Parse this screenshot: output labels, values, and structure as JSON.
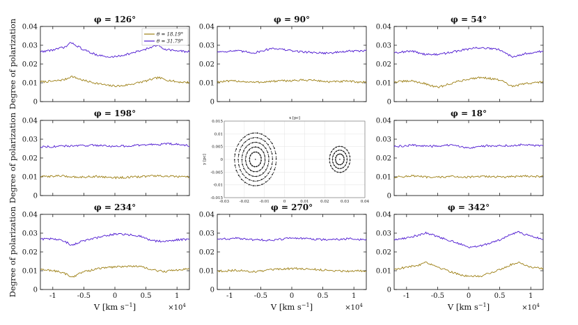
{
  "chart_data": {
    "type": "line",
    "figure": "3x3 grid of spectropolarimetry panels with central disk-velocity inset",
    "xlabel": "V [km s⁻¹]",
    "xlabel_main": "V [km s",
    "xlabel_unit_exp": "−1",
    "xlabel_close": "]",
    "x_multiplier": "×10",
    "x_multiplier_exp": "4",
    "ylabel": "Degree of polarization",
    "xlim": [
      -1.2,
      1.2
    ],
    "ylim": [
      0,
      0.04
    ],
    "xticks": [
      "-1",
      "-0.5",
      "0",
      "0.5",
      "1"
    ],
    "yticks": [
      "0",
      "0.01",
      "0.02",
      "0.03",
      "0.04"
    ],
    "colors": {
      "theta1": "#9c7e12",
      "theta2": "#4b15d0"
    },
    "legend": [
      "θ = 18.19°",
      "θ = 31.79°"
    ],
    "panels": [
      {
        "title": "φ = 126°",
        "series": [
          {
            "name": "θ = 18.19°",
            "x": [
              -1.2,
              -1.0,
              -0.8,
              -0.7,
              -0.5,
              -0.3,
              -0.1,
              0.1,
              0.3,
              0.5,
              0.7,
              0.8,
              1.0,
              1.2
            ],
            "y": [
              0.0105,
              0.0108,
              0.0118,
              0.0135,
              0.0112,
              0.0098,
              0.0085,
              0.0083,
              0.0095,
              0.011,
              0.0128,
              0.0118,
              0.0105,
              0.0102
            ]
          },
          {
            "name": "θ = 31.79°",
            "x": [
              -1.2,
              -1.0,
              -0.8,
              -0.7,
              -0.5,
              -0.3,
              -0.1,
              0.1,
              0.3,
              0.5,
              0.7,
              0.8,
              1.0,
              1.2
            ],
            "y": [
              0.0265,
              0.0275,
              0.029,
              0.0315,
              0.0275,
              0.025,
              0.0235,
              0.0245,
              0.026,
              0.028,
              0.03,
              0.028,
              0.027,
              0.0265
            ]
          }
        ]
      },
      {
        "title": "φ = 90°",
        "series": [
          {
            "name": "θ = 18.19°",
            "x": [
              -1.2,
              -0.9,
              -0.6,
              -0.3,
              0,
              0.3,
              0.6,
              0.9,
              1.2
            ],
            "y": [
              0.0105,
              0.011,
              0.0102,
              0.0108,
              0.0112,
              0.0115,
              0.0105,
              0.0108,
              0.0102
            ]
          },
          {
            "name": "θ = 31.79°",
            "x": [
              -1.2,
              -0.9,
              -0.6,
              -0.3,
              0,
              0.3,
              0.6,
              0.9,
              1.2
            ],
            "y": [
              0.0265,
              0.027,
              0.026,
              0.0285,
              0.027,
              0.0262,
              0.0258,
              0.0268,
              0.027
            ]
          }
        ]
      },
      {
        "title": "φ = 54°",
        "series": [
          {
            "name": "θ = 18.19°",
            "x": [
              -1.2,
              -0.9,
              -0.7,
              -0.5,
              -0.2,
              0,
              0.2,
              0.5,
              0.7,
              0.9,
              1.2
            ],
            "y": [
              0.0105,
              0.011,
              0.0095,
              0.0075,
              0.0105,
              0.012,
              0.013,
              0.0115,
              0.008,
              0.0095,
              0.0105
            ]
          },
          {
            "name": "θ = 31.79°",
            "x": [
              -1.2,
              -0.9,
              -0.7,
              -0.5,
              -0.2,
              0,
              0.2,
              0.5,
              0.7,
              0.9,
              1.2
            ],
            "y": [
              0.0262,
              0.0268,
              0.0252,
              0.025,
              0.0268,
              0.028,
              0.0288,
              0.0275,
              0.024,
              0.0255,
              0.0268
            ]
          }
        ]
      },
      {
        "title": "φ = 198°",
        "series": [
          {
            "name": "θ = 18.19°",
            "x": [
              -1.2,
              -0.9,
              -0.6,
              -0.3,
              0,
              0.3,
              0.6,
              0.9,
              1.2
            ],
            "y": [
              0.01,
              0.0105,
              0.0098,
              0.0102,
              0.0095,
              0.0098,
              0.0105,
              0.0102,
              0.0098
            ]
          },
          {
            "name": "θ = 31.79°",
            "x": [
              -1.2,
              -0.9,
              -0.6,
              -0.3,
              0,
              0.3,
              0.6,
              0.9,
              1.2
            ],
            "y": [
              0.026,
              0.0262,
              0.0265,
              0.0268,
              0.0262,
              0.0265,
              0.0272,
              0.0275,
              0.0265
            ]
          }
        ]
      },
      {
        "title": "φ = 18°",
        "series": [
          {
            "name": "θ = 18.19°",
            "x": [
              -1.2,
              -0.9,
              -0.6,
              -0.3,
              0,
              0.3,
              0.6,
              0.9,
              1.2
            ],
            "y": [
              0.0098,
              0.0105,
              0.0095,
              0.0102,
              0.0098,
              0.0102,
              0.0098,
              0.0105,
              0.01
            ]
          },
          {
            "name": "θ = 31.79°",
            "x": [
              -1.2,
              -0.9,
              -0.6,
              -0.3,
              0,
              0.3,
              0.6,
              0.9,
              1.2
            ],
            "y": [
              0.026,
              0.0268,
              0.0262,
              0.0268,
              0.0255,
              0.0265,
              0.0265,
              0.0272,
              0.0262
            ]
          }
        ]
      },
      {
        "title": "φ = 234°",
        "series": [
          {
            "name": "θ = 18.19°",
            "x": [
              -1.2,
              -1.0,
              -0.8,
              -0.7,
              -0.5,
              -0.2,
              0,
              0.2,
              0.4,
              0.6,
              0.8,
              1.0,
              1.2
            ],
            "y": [
              0.0105,
              0.0102,
              0.0085,
              0.0065,
              0.0095,
              0.0115,
              0.012,
              0.0125,
              0.0122,
              0.0105,
              0.0095,
              0.0105,
              0.011
            ]
          },
          {
            "name": "θ = 31.79°",
            "x": [
              -1.2,
              -1.0,
              -0.8,
              -0.7,
              -0.5,
              -0.2,
              0,
              0.2,
              0.4,
              0.6,
              0.8,
              1.0,
              1.2
            ],
            "y": [
              0.0268,
              0.027,
              0.0255,
              0.0235,
              0.026,
              0.0282,
              0.0295,
              0.0292,
              0.0285,
              0.026,
              0.0255,
              0.0265,
              0.0268
            ]
          }
        ]
      },
      {
        "title": "φ = 270°",
        "series": [
          {
            "name": "θ = 18.19°",
            "x": [
              -1.2,
              -0.9,
              -0.6,
              -0.3,
              0,
              0.3,
              0.6,
              0.9,
              1.2
            ],
            "y": [
              0.0098,
              0.0102,
              0.0095,
              0.0105,
              0.0112,
              0.0108,
              0.0102,
              0.0098,
              0.01
            ]
          },
          {
            "name": "θ = 31.79°",
            "x": [
              -1.2,
              -0.9,
              -0.6,
              -0.3,
              0,
              0.3,
              0.6,
              0.9,
              1.2
            ],
            "y": [
              0.0268,
              0.0272,
              0.0265,
              0.0262,
              0.0275,
              0.0268,
              0.0265,
              0.027,
              0.0265
            ]
          }
        ]
      },
      {
        "title": "φ = 342°",
        "series": [
          {
            "name": "θ = 18.19°",
            "x": [
              -1.2,
              -1.0,
              -0.8,
              -0.7,
              -0.5,
              -0.2,
              0,
              0.2,
              0.5,
              0.7,
              0.8,
              1.0,
              1.2
            ],
            "y": [
              0.0108,
              0.0118,
              0.013,
              0.0148,
              0.012,
              0.0085,
              0.0068,
              0.0072,
              0.0105,
              0.0135,
              0.0145,
              0.012,
              0.0112
            ]
          },
          {
            "name": "θ = 31.79°",
            "x": [
              -1.2,
              -1.0,
              -0.8,
              -0.7,
              -0.5,
              -0.2,
              0,
              0.2,
              0.5,
              0.7,
              0.8,
              1.0,
              1.2
            ],
            "y": [
              0.0265,
              0.0275,
              0.029,
              0.0302,
              0.0282,
              0.025,
              0.0225,
              0.0232,
              0.0265,
              0.0295,
              0.0305,
              0.0282,
              0.027
            ]
          }
        ]
      }
    ],
    "inset": {
      "title": "x [pc]",
      "xlabel": "x [pc]",
      "ylabel": "y [pc]",
      "xlim": [
        -0.03,
        0.04
      ],
      "ylim": [
        -0.015,
        0.015
      ],
      "xticks": [
        "-0.03",
        "-0.02",
        "-0.01",
        "0",
        "0.01",
        "0.02",
        "0.03",
        "0.04"
      ],
      "yticks": [
        "-0.015",
        "-0.01",
        "-0.005",
        "0",
        "0.005",
        "0.01",
        "0.015"
      ],
      "disks": [
        {
          "name": "primary disk",
          "center": [
            -0.0145,
            0.0
          ],
          "radius": 0.0115
        },
        {
          "name": "secondary disk",
          "center": [
            0.0275,
            0.0
          ],
          "radius": 0.006
        }
      ]
    }
  }
}
